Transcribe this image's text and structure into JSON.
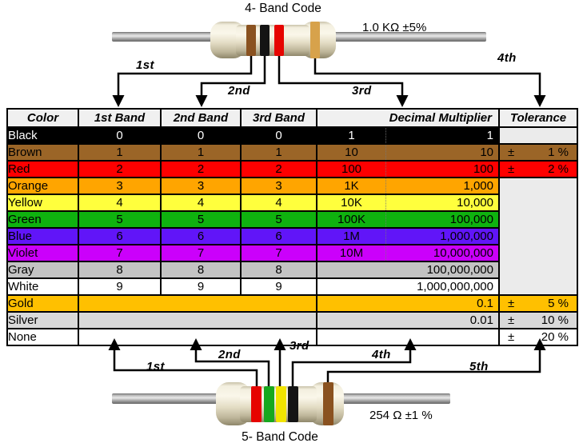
{
  "top_resistor": {
    "title": "4- Band Code",
    "value_label": "1.0 KΩ  ±5%",
    "bands": [
      "brown",
      "black",
      "red",
      "gold"
    ],
    "arrow_labels": [
      "1st",
      "2nd",
      "3rd",
      "4th"
    ]
  },
  "bottom_resistor": {
    "title": "5- Band Code",
    "value_label": "254 Ω  ±1 %",
    "bands": [
      "red",
      "green",
      "yellow",
      "black",
      "brown"
    ],
    "arrow_labels": [
      "1st",
      "2nd",
      "3rd",
      "4th",
      "5th"
    ]
  },
  "band_colors": {
    "brown": "#8a5220",
    "black": "#141414",
    "red": "#e60400",
    "gold": "#d7a24b",
    "green": "#17a81e",
    "yellow": "#f2e400"
  },
  "table": {
    "header_bg": "#f0f0f0",
    "empty_tolerance_bg": "#ebebeb",
    "headers": [
      "Color",
      "1st Band",
      "2nd Band",
      "3rd Band",
      "Decimal Multiplier",
      "Tolerance"
    ],
    "rows": [
      {
        "name": "Black",
        "bg": "#000000",
        "fg": "#ffffff",
        "b1": "0",
        "b2": "0",
        "b3": "0",
        "mult_short": "1",
        "mult_long": "1",
        "tol_empty": true
      },
      {
        "name": "Brown",
        "bg": "#9b6527",
        "b1": "1",
        "b2": "1",
        "b3": "1",
        "mult_short": "10",
        "mult_long": "10",
        "tol_sign": "±",
        "tol_value": "1 %"
      },
      {
        "name": "Red",
        "bg": "#fe0000",
        "b1": "2",
        "b2": "2",
        "b3": "2",
        "mult_short": "100",
        "mult_long": "100",
        "tol_sign": "±",
        "tol_value": "2 %"
      },
      {
        "name": "Orange",
        "bg": "#ffa500",
        "b1": "3",
        "b2": "3",
        "b3": "3",
        "mult_short": "1K",
        "mult_long": "1,000",
        "tol_merged_start": true,
        "tol_merged_rows": 7
      },
      {
        "name": "Yellow",
        "bg": "#ffff3d",
        "b1": "4",
        "b2": "4",
        "b3": "4",
        "mult_short": "10K",
        "mult_long": "10,000"
      },
      {
        "name": "Green",
        "bg": "#0fb20f",
        "b1": "5",
        "b2": "5",
        "b3": "5",
        "mult_short": "100K",
        "mult_long": "100,000"
      },
      {
        "name": "Blue",
        "bg": "#6115f8",
        "b1": "6",
        "b2": "6",
        "b3": "6",
        "mult_short": "1M",
        "mult_long": "1,000,000"
      },
      {
        "name": "Violet",
        "bg": "#cb00fb",
        "b1": "7",
        "b2": "7",
        "b3": "7",
        "mult_short": "10M",
        "mult_long": "10,000,000"
      },
      {
        "name": "Gray",
        "bg": "#c3c3c3",
        "b1": "8",
        "b2": "8",
        "b3": "8",
        "mult_long": "100,000,000"
      },
      {
        "name": "White",
        "bg": "#ffffff",
        "b1": "9",
        "b2": "9",
        "b3": "9",
        "mult_long": "1,000,000,000"
      },
      {
        "name": "Gold",
        "bg": "#ffc000",
        "merged_bands": true,
        "mult_long": "0.1",
        "tol_sign": "±",
        "tol_value": "5 %"
      },
      {
        "name": "Silver",
        "bg": "#d9d9d9",
        "merged_bands": true,
        "mult_long": "0.01",
        "tol_sign": "±",
        "tol_value": "10 %"
      },
      {
        "name": "None",
        "bg": "#ffffff",
        "merged_bands": true,
        "mult_long": "",
        "tol_sign": "±",
        "tol_value": "20 %"
      }
    ]
  }
}
